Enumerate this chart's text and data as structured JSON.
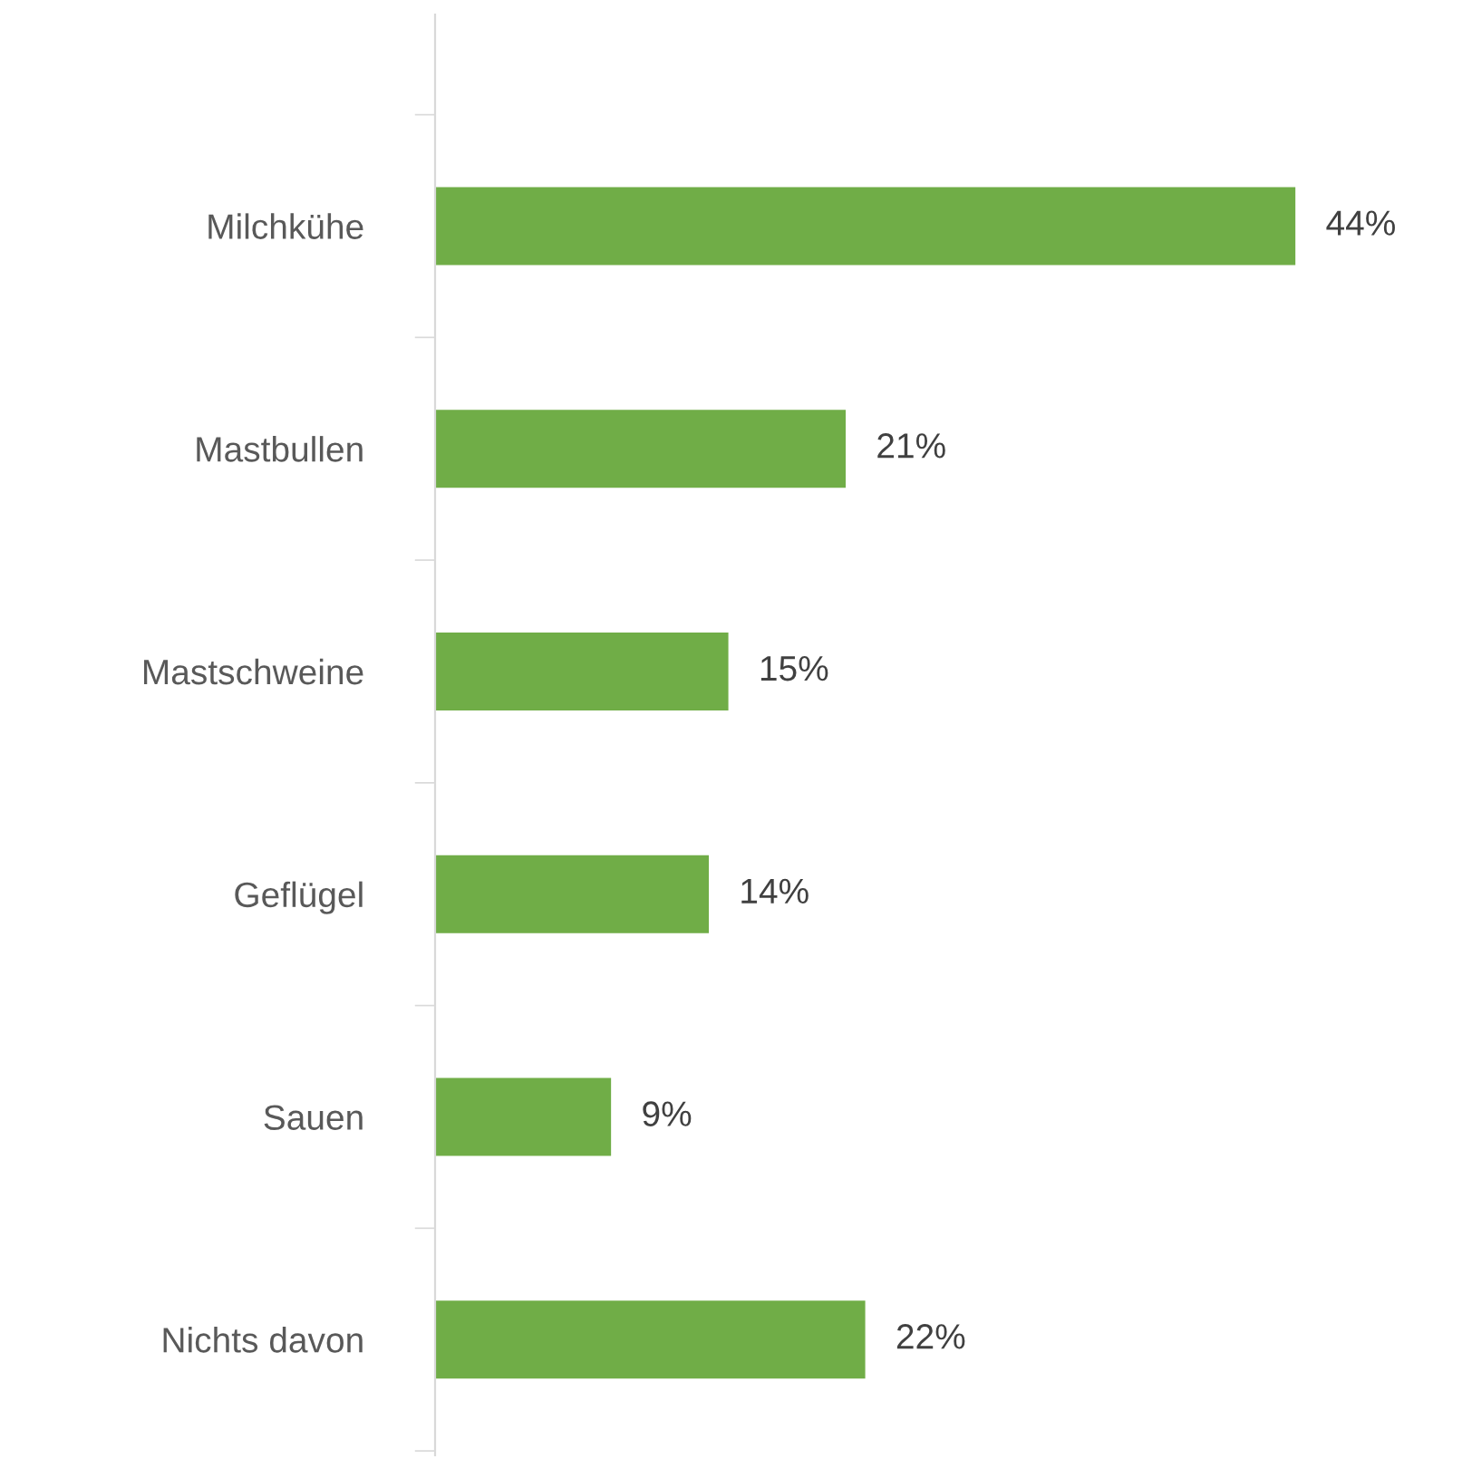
{
  "chart_data": {
    "type": "bar",
    "orientation": "horizontal",
    "categories": [
      "Milchkühe",
      "Mastbullen",
      "Mastschweine",
      "Geflügel",
      "Sauen",
      "Nichts davon"
    ],
    "values": [
      44,
      21,
      15,
      14,
      9,
      22
    ],
    "value_labels": [
      "44%",
      "21%",
      "15%",
      "14%",
      "9%",
      "22%"
    ],
    "color": "#70ad47",
    "grid": false,
    "legend": false
  }
}
